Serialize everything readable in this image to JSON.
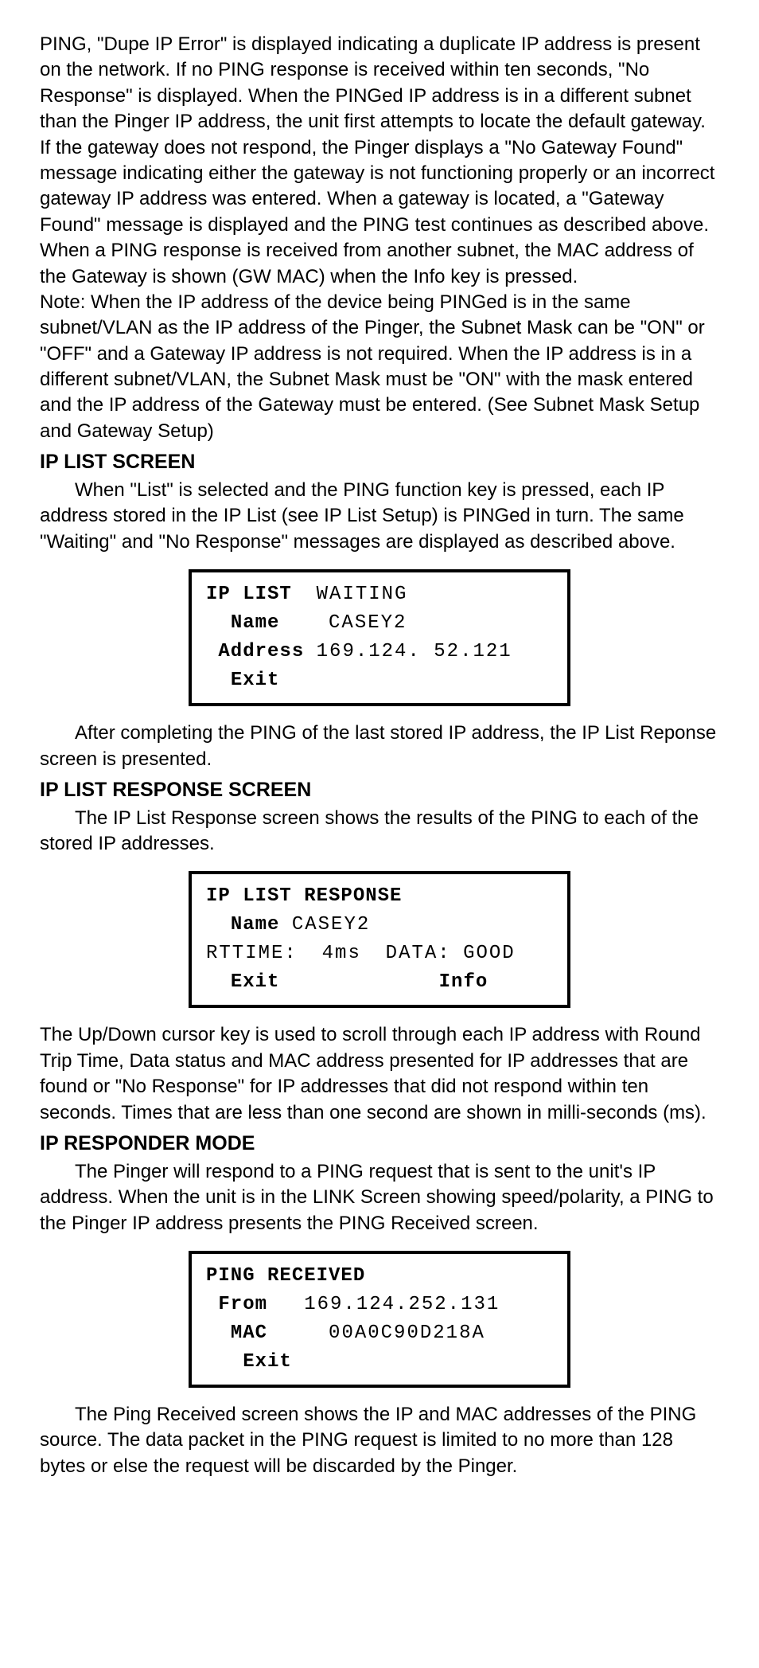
{
  "para1": "PING, \"Dupe IP Error\" is displayed indicating a duplicate IP address is present on the network. If no PING response is received within ten seconds, \"No Response\" is displayed. When the PINGed IP address is in a different subnet than the Pinger IP address, the unit first attempts to locate the default gateway. If the gateway does not respond, the Pinger displays a \"No Gateway Found\" message indicating either the gateway is not functioning properly or an incorrect gateway IP address was entered. When a gateway is located, a \"Gateway Found\" message is displayed and the PING test continues as described above. When a PING response is received from another subnet, the MAC address of the Gateway is shown (GW MAC) when the Info key is pressed.",
  "para2": "Note: When the IP address of the device being PINGed is in the same subnet/VLAN as the IP address of the Pinger, the Subnet Mask can be \"ON\" or \"OFF\" and a Gateway IP address is not required. When the IP address is in a different subnet/VLAN, the Subnet Mask must be \"ON\" with the mask entered and the IP address of the Gateway must be entered. (See Subnet Mask Setup and Gateway Setup)",
  "h1": "IP LIST SCREEN",
  "para3": "When \"List\" is selected and the PING function key is pressed, each IP address stored in the IP List (see IP List Setup) is PINGed in turn. The same \"Waiting\" and \"No Response\" messages are displayed as described above.",
  "lcd1": {
    "title": "IP LIST",
    "status": "WAITING",
    "name_label": "Name",
    "name_value": "CASEY2",
    "addr_label": "Address",
    "addr_value": "169.124. 52.121",
    "exit": "Exit"
  },
  "para4": "After completing the PING of the last stored IP address, the IP List Reponse screen is presented.",
  "h2": "IP LIST RESPONSE SCREEN",
  "para5": "The IP List Response screen shows the results of the PING to each of the stored IP addresses.",
  "lcd2": {
    "title": "IP LIST RESPONSE",
    "name_label": "Name",
    "name_value": "CASEY2",
    "rt_label": "RTTIME:",
    "rt_value": "4ms",
    "data_label": "DATA:",
    "data_value": "GOOD",
    "exit": "Exit",
    "info": "Info"
  },
  "para6": "The Up/Down cursor key is used to scroll through each IP address with Round Trip Time, Data status and MAC address presented for IP addresses that are found or \"No Response\" for IP addresses that did not respond within ten seconds. Times that are less than one second are shown in milli-seconds (ms).",
  "h3": "IP RESPONDER MODE",
  "para7": "The Pinger will respond to a PING request that is sent to the unit's IP address. When the unit is in the LINK Screen showing speed/polarity, a PING to the Pinger IP address presents the PING Received screen.",
  "lcd3": {
    "title": "PING RECEIVED",
    "from_label": "From",
    "from_value": "169.124.252.131",
    "mac_label": "MAC",
    "mac_value": "00A0C90D218A",
    "exit": "Exit"
  },
  "para8": "The Ping Received screen shows the IP and MAC addresses of the PING source. The data packet in the PING request is limited to no more than 128 bytes or else the request will be discarded by the Pinger."
}
